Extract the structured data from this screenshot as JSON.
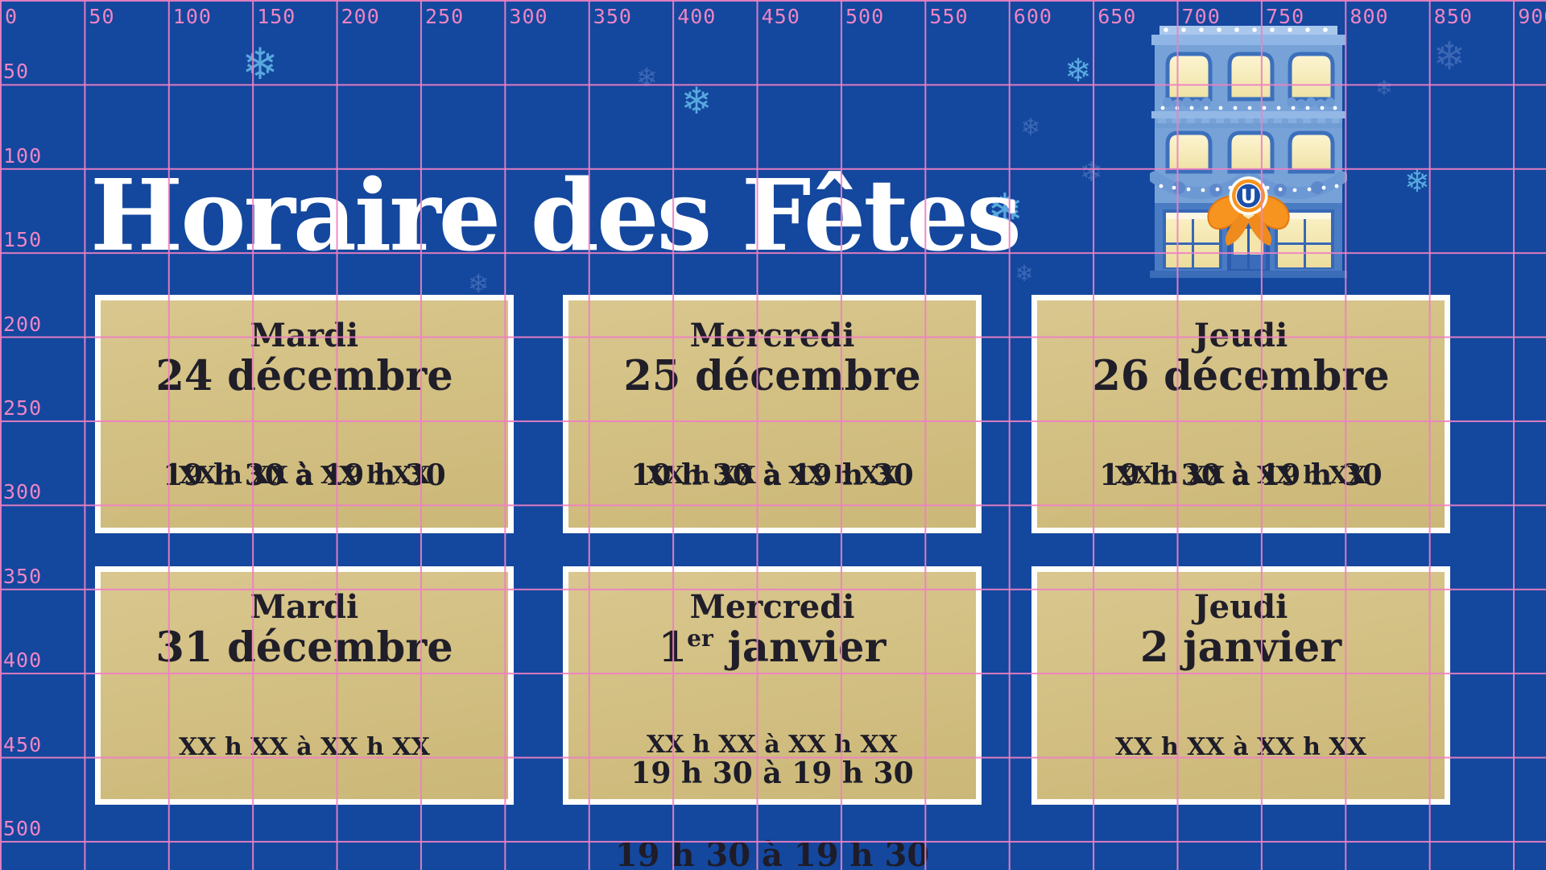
{
  "page": {
    "title": "Horaire des Fêtes"
  },
  "ruler": {
    "top_labels": [
      "0",
      "50",
      "100",
      "150",
      "200",
      "250",
      "300",
      "350",
      "400",
      "450",
      "500",
      "550",
      "600",
      "650",
      "700",
      "750",
      "800",
      "850",
      "900"
    ],
    "left_labels": [
      "50",
      "100",
      "150",
      "200",
      "250",
      "300",
      "350",
      "400",
      "450",
      "500"
    ]
  },
  "cards": [
    {
      "day": "Mardi",
      "date_main": "24 décembre",
      "date_sup": "",
      "date_after": "",
      "times_mode": "overlap",
      "placeholder": "XX h XX à XX h XX",
      "value": "19 h 30 à 19 h 30"
    },
    {
      "day": "Mercredi",
      "date_main": "25 décembre",
      "date_sup": "",
      "date_after": "",
      "times_mode": "overlap",
      "placeholder": "XX h XX à XX h XX",
      "value": "10 h 30 à 19 h 30"
    },
    {
      "day": "Jeudi",
      "date_main": "26 décembre",
      "date_sup": "",
      "date_after": "",
      "times_mode": "overlap",
      "placeholder": "XX h XX à XX h XX",
      "value": "19 h 30 à 19 h 30"
    },
    {
      "day": "Mardi",
      "date_main": "31 décembre",
      "date_sup": "",
      "date_after": "",
      "times_mode": "single",
      "placeholder": "XX h XX à XX h XX",
      "value": ""
    },
    {
      "day": "Mercredi",
      "date_main": "1",
      "date_sup": "er",
      "date_after": " janvier",
      "times_mode": "stacked",
      "placeholder": "XX h XX à XX h XX",
      "value": "19 h 30 à 19 h 30"
    },
    {
      "day": "Jeudi",
      "date_main": "2 janvier",
      "date_sup": "",
      "date_after": "",
      "times_mode": "single",
      "placeholder": "XX h XX à XX h XX",
      "value": ""
    }
  ],
  "overflow_line": "19 h 30 à 19 h 30",
  "store_logo_letter": "U",
  "icons": {
    "snowflake": "❄"
  },
  "colors": {
    "background_blue": "#14479e",
    "grid_pink": "#ee80c3",
    "card_gold": "#d3c083",
    "card_border": "#fdfdfa",
    "card_text": "#1d1c28",
    "title_white": "#ffffff",
    "snowflake_bright": "#57a9de",
    "snowflake_dark": "#3b67b5",
    "logo_orange": "#f6941d",
    "logo_blue": "#1c4fa8",
    "ribbon_orange": "#f79420"
  }
}
